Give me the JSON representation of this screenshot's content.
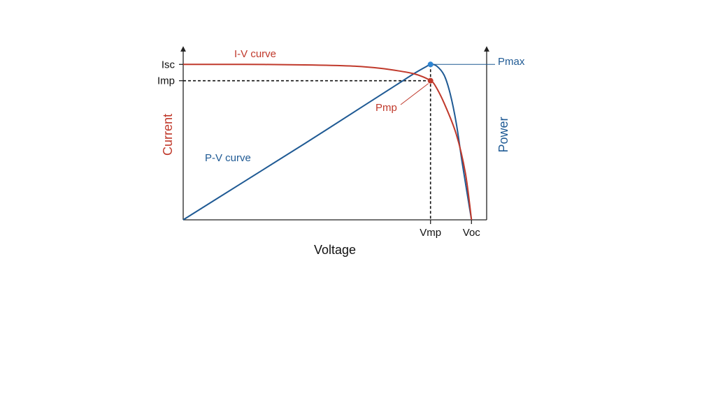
{
  "colors": {
    "iv": "#c0392b",
    "pv": "#1f5a94",
    "pmax_dot": "#2f86d4",
    "axis": "#222222",
    "text": "#111111"
  },
  "chart_data": {
    "type": "line",
    "xlabel": "Voltage",
    "ylabel_left": "Current",
    "ylabel_right": "Power",
    "grid": false,
    "x_ticks": [
      "Vmp",
      "Voc"
    ],
    "y_ticks": [
      "Isc",
      "Imp"
    ],
    "series": [
      {
        "name": "I-V curve",
        "axis": "left",
        "color": "#c0392b",
        "x": [
          0,
          0.2,
          0.4,
          0.55,
          0.65,
          0.72,
          0.76,
          0.79,
          0.815,
          0.83,
          0.86,
          0.9,
          0.93,
          0.95
        ],
        "y": [
          1.0,
          1.0,
          0.997,
          0.99,
          0.975,
          0.955,
          0.94,
          0.92,
          0.895,
          0.865,
          0.75,
          0.55,
          0.3,
          0.0
        ]
      },
      {
        "name": "P-V curve",
        "axis": "right",
        "color": "#1f5a94",
        "x": [
          0,
          0.2,
          0.4,
          0.6,
          0.7,
          0.76,
          0.8,
          0.815,
          0.835,
          0.86,
          0.88,
          0.9,
          0.92,
          0.95
        ],
        "y": [
          0,
          0.245,
          0.49,
          0.74,
          0.865,
          0.94,
          0.985,
          1.0,
          0.99,
          0.93,
          0.81,
          0.62,
          0.36,
          0.0
        ]
      }
    ],
    "annotations": [
      {
        "label": "Pmax",
        "x": 0.815,
        "y": 1.0,
        "series": "P-V curve"
      },
      {
        "label": "Pmp",
        "x": 0.815,
        "y": 0.895,
        "series": "I-V curve"
      }
    ],
    "reference_points": {
      "Vmp": 0.815,
      "Voc": 0.95,
      "Isc": 1.0,
      "Imp": 0.895
    },
    "xlim": [
      0,
      1
    ],
    "ylim_left": [
      0,
      1.1
    ],
    "ylim_right": [
      0,
      1.1
    ]
  }
}
